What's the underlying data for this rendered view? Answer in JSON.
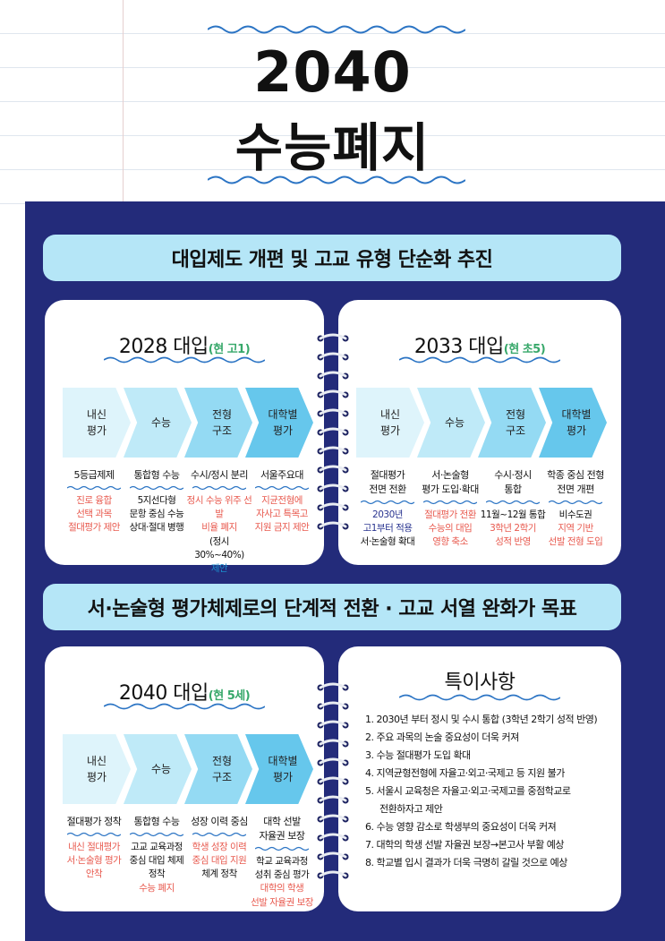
{
  "header": {
    "title_line1": "2040",
    "title_line2": "수능폐지"
  },
  "banner1": "대입제도 개편 및 고교 유형 단순화 추진",
  "banner2": "서·논술형 평가체제로의 단계적 전환 · 고교 서열 완화가 목표",
  "card_2028": {
    "title": "2028 대입",
    "sub": "(현 고1)",
    "steps": [
      "내신|평가",
      "수능",
      "전형|구조",
      "대학별|평가"
    ],
    "cols": [
      {
        "head": "5등급제제",
        "lines": [
          [
            "진로 융합",
            "red"
          ],
          [
            "선택 과목",
            "red"
          ],
          [
            "절대평가 제안",
            "red"
          ]
        ]
      },
      {
        "head": "통합형 수능",
        "lines": [
          [
            "5지선다형",
            "dark"
          ],
          [
            "문항 중심 수능",
            "dark"
          ],
          [
            "상대·절대 병행",
            "dark"
          ]
        ]
      },
      {
        "head": "수시/정시 분리",
        "lines": [
          [
            "정시 수능 위주 선발",
            "red"
          ],
          [
            "비율 폐지",
            "red"
          ],
          [
            "(정시 30%~40%)",
            "dark"
          ],
          [
            "제안",
            "blue"
          ]
        ]
      },
      {
        "head": "서울주요대",
        "lines": [
          [
            "지균전형에",
            "red"
          ],
          [
            "자사고 특목고",
            "red"
          ],
          [
            "지원 금지 제안",
            "red"
          ]
        ]
      }
    ]
  },
  "card_2033": {
    "title": "2033 대입",
    "sub": "(현 초5)",
    "steps": [
      "내신|평가",
      "수능",
      "전형|구조",
      "대학별|평가"
    ],
    "cols": [
      {
        "head": "절대평가|전면 전환",
        "lines": [
          [
            "2030년",
            "navytext"
          ],
          [
            "고1부터 적용",
            "navytext"
          ],
          [
            "서·논술형 확대",
            "dark"
          ]
        ]
      },
      {
        "head": "서·논술형|평가 도입·확대",
        "lines": [
          [
            "절대평가 전환",
            "red"
          ],
          [
            "수능의 대입",
            "red"
          ],
          [
            "영향 축소",
            "red"
          ]
        ]
      },
      {
        "head": "수시·정시|통합",
        "lines": [
          [
            "11월~12월 통합",
            "dark"
          ],
          [
            "3학년 2학기",
            "red"
          ],
          [
            "성적 반영",
            "red"
          ]
        ]
      },
      {
        "head": "학종 중심 전형|전면 개편",
        "lines": [
          [
            "비수도권",
            "dark"
          ],
          [
            "지역 기반",
            "red"
          ],
          [
            "선발 전형 도입",
            "red"
          ]
        ]
      }
    ]
  },
  "card_2040": {
    "title": "2040 대입",
    "sub": "(현 5세)",
    "steps": [
      "내신|평가",
      "수능",
      "전형|구조",
      "대학별|평가"
    ],
    "cols": [
      {
        "head": "절대평가 정착",
        "lines": [
          [
            "내신 절대평가",
            "red"
          ],
          [
            "서·논술형 평가",
            "red"
          ],
          [
            "안착",
            "red"
          ]
        ]
      },
      {
        "head": "통합형 수능",
        "lines": [
          [
            "고교 교육과정",
            "dark"
          ],
          [
            "중심 대입 체제",
            "dark"
          ],
          [
            "정착",
            "dark"
          ],
          [
            "수능 폐지",
            "red"
          ]
        ]
      },
      {
        "head": "성장 이력 중심",
        "lines": [
          [
            "학생 성장 이력",
            "red"
          ],
          [
            "중심 대입 지원",
            "red"
          ],
          [
            "체계 정착",
            "dark"
          ]
        ]
      },
      {
        "head": "대학 선발|자율권 보장",
        "lines": [
          [
            "학교 교육과정",
            "dark"
          ],
          [
            "성취 중심 평가",
            "dark"
          ],
          [
            "대학의 학생",
            "red"
          ],
          [
            "선발 자율권 보장",
            "red"
          ]
        ]
      }
    ]
  },
  "notes": {
    "title": "특이사항",
    "items": [
      "1. 2030년 부터 정시 및 수시 통합 (3학년 2학기 성적 반영)",
      "2. 주요 과목의 논술 중요성이 더욱 커져",
      "3. 수능 절대평가 도입 확대",
      "4. 지역균형전형에 자율고·외고·국제고 등 지원 불가",
      "5. 서울시 교육청은 자율고·외고·국제고를 중점학교로",
      "전환하자고 제안",
      "6. 수능 영향 감소로 학생부의 중요성이 더욱 커져",
      "7. 대학의 학생 선발 자율권 보장→본고사 부활 예상",
      "8. 학교별 입시 결과가 더욱 극명히 갈릴 것으로 예상"
    ]
  },
  "colors": {
    "navy": "#232b7a",
    "banner": "#b5e6f7",
    "red": "#e85a4f",
    "blue": "#1b8fcf",
    "green": "#37a86a"
  }
}
